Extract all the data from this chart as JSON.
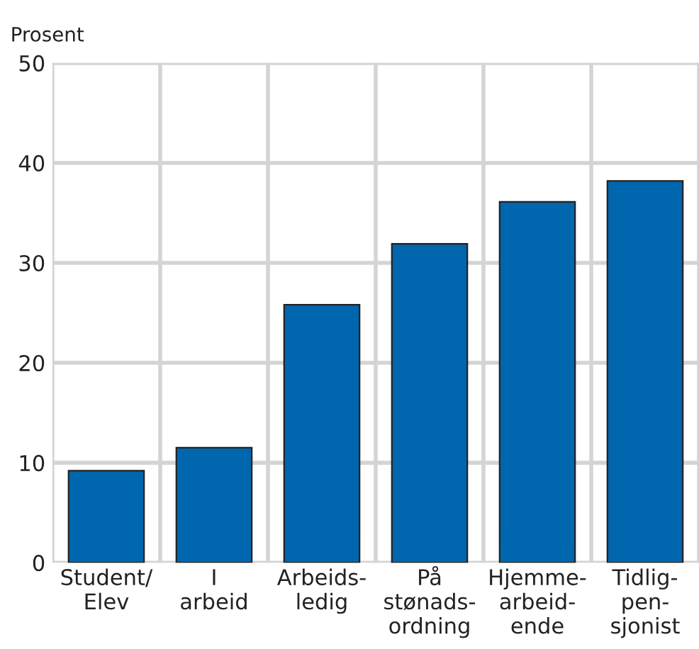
{
  "chart_data": {
    "type": "bar",
    "ylabel": "Prosent",
    "categories": [
      "Student/\nElev",
      "I\narbeid",
      "Arbeids-\nledig",
      "På\nstønads-\nordning",
      "Hjemme-\narbeid-\nende",
      "Tidlig-\npen-\nsjonist"
    ],
    "values": [
      9.2,
      11.5,
      25.8,
      31.9,
      36.1,
      38.2
    ],
    "color": "#0066ad",
    "ylim": [
      0,
      50
    ],
    "yticks": [
      0,
      10,
      20,
      30,
      40,
      50
    ],
    "grid": true
  }
}
